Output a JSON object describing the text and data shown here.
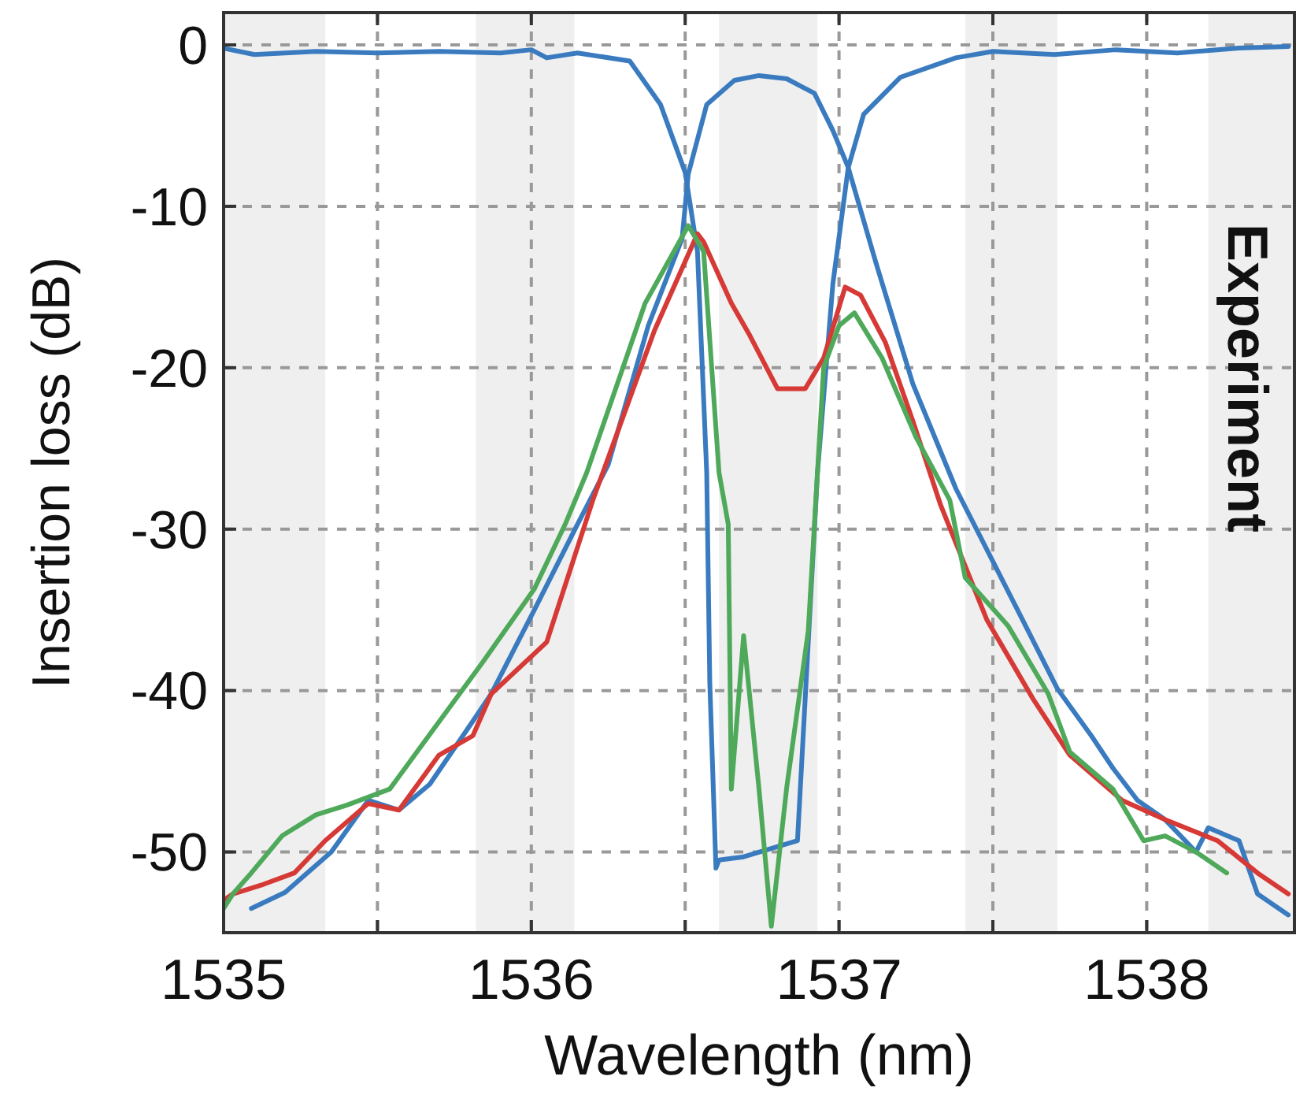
{
  "chart_data": {
    "type": "line",
    "xlabel": "Wavelength (nm)",
    "ylabel": "Insertion loss (dB)",
    "annotations": [
      "Experiment"
    ],
    "xlim": [
      1535,
      1538.48
    ],
    "ylim": [
      -55,
      2
    ],
    "xticks": [
      1535,
      {
        "value": 1535.5,
        "label": null
      },
      1536,
      {
        "value": 1536.5,
        "label": null
      },
      1537,
      {
        "value": 1537.5,
        "label": null
      },
      1538
    ],
    "yticks": [
      -50,
      -40,
      -30,
      -20,
      -10,
      0
    ],
    "grid": true,
    "line_style": "solid",
    "bands": [
      {
        "axis": "x",
        "from": 1535,
        "to": 1535.33,
        "color": "#efefef"
      },
      {
        "axis": "x",
        "from": 1535.82,
        "to": 1536.14,
        "color": "#efefef"
      },
      {
        "axis": "x",
        "from": 1536.61,
        "to": 1536.93,
        "color": "#efefef"
      },
      {
        "axis": "x",
        "from": 1537.41,
        "to": 1537.71,
        "color": "#efefef"
      },
      {
        "axis": "x",
        "from": 1538.2,
        "to": 1538.48,
        "color": "#efefef"
      }
    ],
    "series": [
      {
        "color": "#3a7bc0",
        "x": [
          1535.0,
          1535.1,
          1535.3,
          1535.5,
          1535.7,
          1535.9,
          1536.0,
          1536.05,
          1536.15,
          1536.32,
          1536.42,
          1536.5,
          1536.54,
          1536.57,
          1536.58,
          1536.6,
          1536.61,
          1536.69,
          1536.865,
          1536.93,
          1536.98,
          1537.03,
          1537.08,
          1537.2,
          1537.38,
          1537.5,
          1537.7,
          1537.9,
          1538.1,
          1538.3,
          1538.46
        ],
        "values": [
          -0.2,
          -0.6,
          -0.4,
          -0.5,
          -0.4,
          -0.5,
          -0.3,
          -0.8,
          -0.5,
          -1,
          -3.7,
          -7.9,
          -12.8,
          -26.5,
          -39.5,
          -51,
          -50.5,
          -50.3,
          -49.3,
          -26.5,
          -14.8,
          -7.6,
          -4.3,
          -2,
          -0.8,
          -0.4,
          -0.6,
          -0.3,
          -0.5,
          -0.2,
          -0.1
        ]
      },
      {
        "color": "#3a7bc0",
        "x": [
          1535.09,
          1535.2,
          1535.35,
          1535.47,
          1535.57,
          1535.67,
          1535.81,
          1535.87,
          1536.01,
          1536.15,
          1536.25,
          1536.38,
          1536.49,
          1536.51,
          1536.57,
          1536.66,
          1536.74,
          1536.83,
          1536.92,
          1536.98,
          1537.03,
          1537.12,
          1537.24,
          1537.38,
          1537.5,
          1537.58,
          1537.71,
          1537.82,
          1537.89,
          1537.97,
          1538.06,
          1538.16,
          1538.2,
          1538.3,
          1538.36,
          1538.46
        ],
        "values": [
          -53.5,
          -52.5,
          -50,
          -46.8,
          -47.4,
          -45.8,
          -41.9,
          -40.2,
          -35,
          -29.7,
          -26,
          -17.4,
          -12,
          -8,
          -3.7,
          -2.2,
          -1.9,
          -2.1,
          -3,
          -5.3,
          -7.6,
          -13.5,
          -21,
          -27.5,
          -32,
          -35,
          -39.9,
          -42.8,
          -44.8,
          -46.8,
          -48,
          -50,
          -48.5,
          -49.3,
          -52.6,
          -53.9
        ]
      },
      {
        "color": "#d63a36",
        "x": [
          1535.0,
          1535.03,
          1535.13,
          1535.23,
          1535.33,
          1535.47,
          1535.57,
          1535.7,
          1535.81,
          1535.87,
          1536.05,
          1536.2,
          1536.4,
          1536.54,
          1536.56,
          1536.65,
          1536.71,
          1536.8,
          1536.89,
          1536.95,
          1537.02,
          1537.07,
          1537.15,
          1537.24,
          1537.33,
          1537.48,
          1537.63,
          1537.75,
          1537.92,
          1538.06,
          1538.23,
          1538.36,
          1538.46
        ],
        "values": [
          -53,
          -52.6,
          -52,
          -51.3,
          -49.3,
          -47,
          -47.4,
          -44,
          -42.8,
          -40.2,
          -37,
          -28.2,
          -17.7,
          -11.7,
          -12.2,
          -16,
          -18,
          -21.3,
          -21.3,
          -19.4,
          -15,
          -15.5,
          -18.4,
          -23.3,
          -28.5,
          -35.6,
          -40.5,
          -44,
          -46.8,
          -48,
          -49.3,
          -51.3,
          -52.6
        ]
      },
      {
        "color": "#4fa95a",
        "x": [
          1535.0,
          1535.03,
          1535.09,
          1535.19,
          1535.3,
          1535.4,
          1535.54,
          1535.64,
          1535.74,
          1535.84,
          1536.01,
          1536.11,
          1536.18,
          1536.37,
          1536.51,
          1536.56,
          1536.61,
          1536.64,
          1536.65,
          1536.69,
          1536.74,
          1536.78,
          1536.83,
          1536.9,
          1536.93,
          1536.95,
          1537.0,
          1537.05,
          1537.14,
          1537.25,
          1537.36,
          1537.41,
          1537.55,
          1537.68,
          1537.75,
          1537.89,
          1537.99,
          1538.06,
          1538.16,
          1538.26
        ],
        "values": [
          -53.5,
          -52.6,
          -51.3,
          -49,
          -47.7,
          -47.1,
          -46.1,
          -43.5,
          -40.9,
          -38.3,
          -33.7,
          -29.7,
          -26.5,
          -16,
          -11.2,
          -12.8,
          -26.5,
          -29.7,
          -46.1,
          -36.6,
          -46.1,
          -54.6,
          -46,
          -36.3,
          -26.5,
          -20,
          -17.4,
          -16.6,
          -19.4,
          -24.3,
          -28.2,
          -33,
          -36,
          -40.2,
          -43.8,
          -46.1,
          -49.3,
          -49,
          -50,
          -51.3
        ]
      }
    ]
  }
}
